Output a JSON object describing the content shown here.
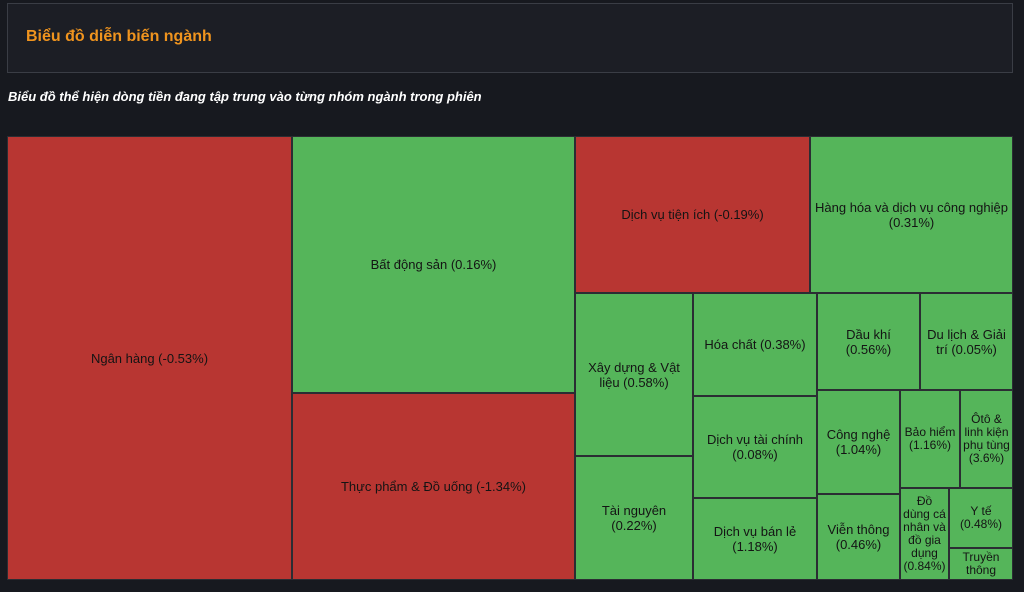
{
  "header": {
    "title": "Biểu đồ diễn biến ngành"
  },
  "subtitle": "Biểu đồ thể hiện dòng tiền đang tập trung vào từng nhóm ngành trong phiên",
  "colors": {
    "positive": "#55b55a",
    "negative": "#b83632",
    "background": "#17191f"
  },
  "chart_data": {
    "type": "treemap",
    "title": "Biểu đồ diễn biến ngành",
    "items": [
      {
        "name": "Ngân hàng",
        "change_pct": -0.53,
        "label": "Ngân hàng (-0.53%)"
      },
      {
        "name": "Bất động sản",
        "change_pct": 0.16,
        "label": "Bất động sản (0.16%)"
      },
      {
        "name": "Thực phẩm & Đồ uống",
        "change_pct": -1.34,
        "label": "Thực phẩm & Đồ uống (-1.34%)"
      },
      {
        "name": "Dịch vụ tiện ích",
        "change_pct": -0.19,
        "label": "Dịch vụ tiện ích (-0.19%)"
      },
      {
        "name": "Hàng hóa và dịch vụ công nghiệp",
        "change_pct": 0.31,
        "label": "Hàng hóa và dịch vụ công nghiệp (0.31%)"
      },
      {
        "name": "Xây dựng & Vật liệu",
        "change_pct": 0.58,
        "label": "Xây dựng & Vật liệu (0.58%)"
      },
      {
        "name": "Tài nguyên",
        "change_pct": 0.22,
        "label": "Tài nguyên (0.22%)"
      },
      {
        "name": "Hóa chất",
        "change_pct": 0.38,
        "label": "Hóa chất (0.38%)"
      },
      {
        "name": "Dịch vụ tài chính",
        "change_pct": 0.08,
        "label": "Dịch vụ tài chính (0.08%)"
      },
      {
        "name": "Dịch vụ bán lẻ",
        "change_pct": 1.18,
        "label": "Dịch vụ bán lẻ (1.18%)"
      },
      {
        "name": "Dầu khí",
        "change_pct": 0.56,
        "label": "Dầu khí (0.56%)"
      },
      {
        "name": "Du lịch & Giải trí",
        "change_pct": 0.05,
        "label": "Du lịch & Giải trí (0.05%)"
      },
      {
        "name": "Công nghệ",
        "change_pct": 1.04,
        "label": "Công nghệ (1.04%)"
      },
      {
        "name": "Bảo hiểm",
        "change_pct": 1.16,
        "label": "Bảo hiểm (1.16%)"
      },
      {
        "name": "Ôtô & linh kiện phụ tùng",
        "change_pct": 3.6,
        "label": "Ôtô & linh kiện phụ tùng (3.6%)"
      },
      {
        "name": "Viễn thông",
        "change_pct": 0.46,
        "label": "Viễn thông (0.46%)"
      },
      {
        "name": "Đồ dùng cá nhân và đồ gia dụng",
        "change_pct": 0.84,
        "label": "Đồ dùng cá nhân và đồ gia dụng (0.84%)"
      },
      {
        "name": "Y tế",
        "change_pct": 0.48,
        "label": "Y tế (0.48%)"
      },
      {
        "name": "Truyền thông",
        "change_pct": null,
        "label": "Truyền thông"
      }
    ]
  }
}
